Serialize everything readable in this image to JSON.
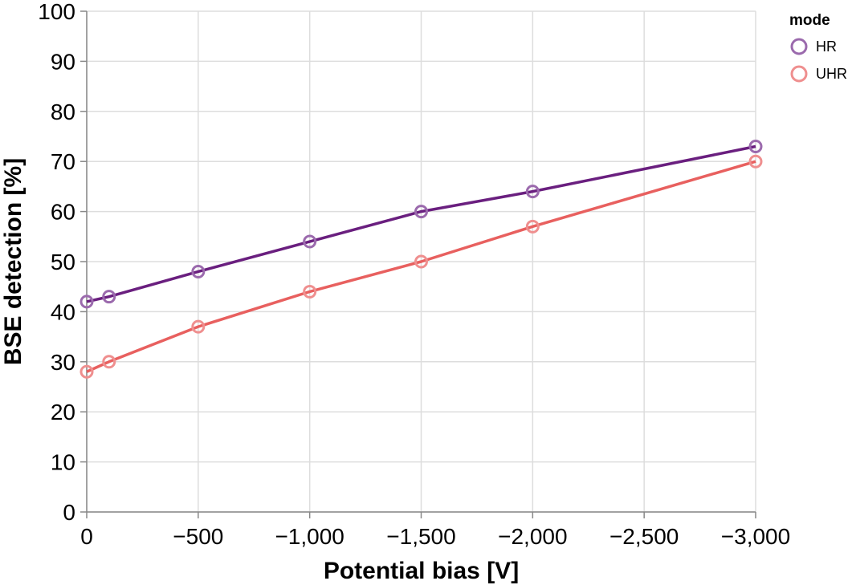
{
  "chart_data": {
    "type": "line",
    "title": "",
    "xlabel": "Potential bias [V]",
    "ylabel": "BSE detection [%]",
    "x": [
      0,
      -100,
      -500,
      -1000,
      -1500,
      -2000,
      -3000
    ],
    "xlim": [
      0,
      -3000
    ],
    "ylim": [
      0,
      100
    ],
    "xticks": [
      0,
      -500,
      -1000,
      -1500,
      -2000,
      -2500,
      -3000
    ],
    "xtick_labels": [
      "0",
      "−500",
      "−1,000",
      "−1,500",
      "−2,000",
      "−2,500",
      "−3,000"
    ],
    "yticks": [
      0,
      10,
      20,
      30,
      40,
      50,
      60,
      70,
      80,
      90,
      100
    ],
    "ytick_labels": [
      "0",
      "10",
      "20",
      "30",
      "40",
      "50",
      "60",
      "70",
      "80",
      "90",
      "100"
    ],
    "grid": true,
    "legend": {
      "title": "mode",
      "position": "top-right"
    },
    "series": [
      {
        "name": "HR",
        "color": "#6a1f7f",
        "marker_color": "#9b6aad",
        "values": [
          42,
          43,
          48,
          54,
          60,
          64,
          73
        ]
      },
      {
        "name": "UHR",
        "color": "#e8605f",
        "marker_color": "#ef8f8f",
        "values": [
          28,
          30,
          37,
          44,
          50,
          57,
          70
        ]
      }
    ]
  }
}
